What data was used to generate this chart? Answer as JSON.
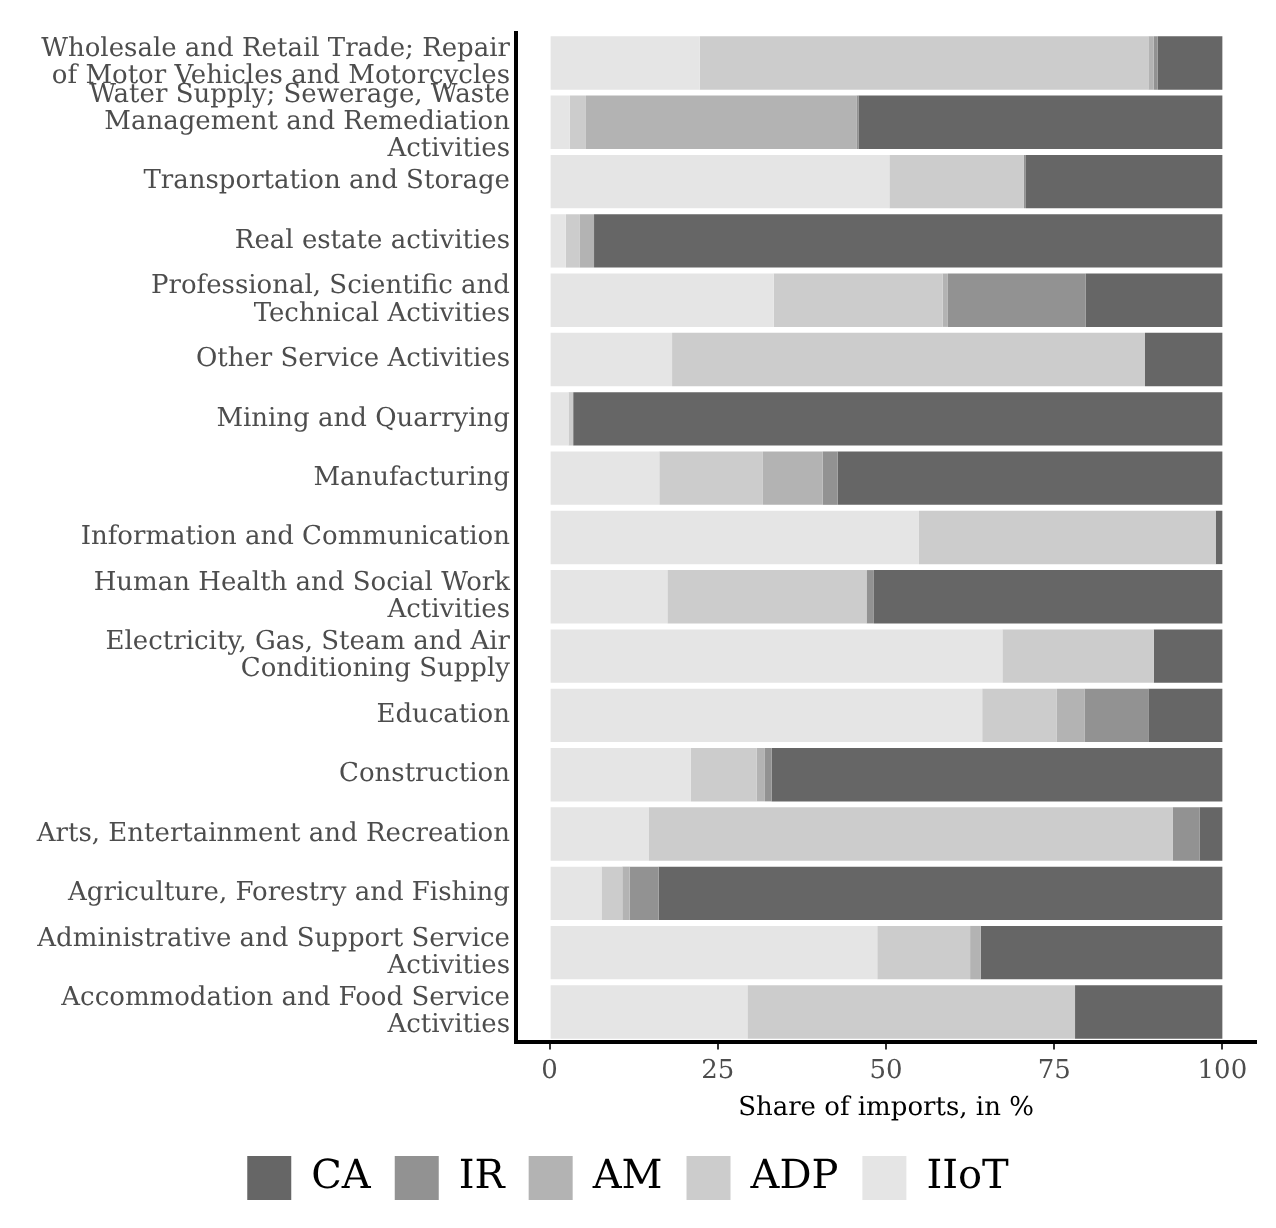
{
  "chart_data": {
    "type": "bar",
    "orientation": "horizontal",
    "stacked": true,
    "xlabel": "Share of imports, in %",
    "legend": "bottom",
    "categories": [
      "Wholesale and Retail Trade; Repair of Motor Vehicles and Motorcycles",
      "Water Supply; Sewerage, Waste Management and Remediation Activities",
      "Transportation and Storage",
      "Real estate activities",
      "Professional, Scientific and Technical Activities",
      "Other Service Activities",
      "Mining and Quarrying",
      "Manufacturing",
      "Information and Communication",
      "Human Health and Social Work Activities",
      "Electricity, Gas, Steam and Air Conditioning Supply",
      "Education",
      "Construction",
      "Arts, Entertainment and Recreation",
      "Agriculture, Forestry and Fishing",
      "Administrative and Support Service Activities",
      "Accommodation and Food Service Activities"
    ],
    "series": [
      {
        "name": "IIoT",
        "color": "#e5e5e5",
        "values": [
          22.3,
          3.0,
          50.5,
          2.4,
          33.3,
          18.2,
          2.8,
          16.3,
          54.9,
          17.5,
          67.3,
          64.3,
          21.0,
          14.7,
          7.7,
          48.7,
          29.4
        ]
      },
      {
        "name": "ADP",
        "color": "#cccccc",
        "values": [
          66.7,
          2.4,
          20.0,
          2.1,
          25.1,
          70.3,
          0.7,
          15.4,
          44.1,
          29.6,
          22.5,
          11.1,
          9.8,
          77.9,
          3.1,
          13.8,
          48.7
        ]
      },
      {
        "name": "AM",
        "color": "#b3b3b3",
        "values": [
          0.8,
          40.2,
          0,
          2.1,
          0.8,
          0,
          0,
          8.9,
          0,
          null,
          0,
          4.1,
          1.2,
          0,
          1.1,
          1.6,
          0
        ]
      },
      {
        "name": "IR",
        "color": "#929292",
        "values": [
          0.6,
          0.3,
          0.3,
          0,
          20.5,
          0,
          0,
          2.2,
          0,
          1.1,
          0,
          9.5,
          1.0,
          4.0,
          4.3,
          0,
          0
        ]
      },
      {
        "name": "CA",
        "color": "#666666",
        "values": [
          9.6,
          54.1,
          29.2,
          93.4,
          20.3,
          11.5,
          96.5,
          57.2,
          1.0,
          51.8,
          10.2,
          11.0,
          67.0,
          3.4,
          83.8,
          35.9,
          21.9
        ]
      }
    ],
    "xlim": [
      -5,
      105
    ],
    "xticks": [
      0,
      25,
      50,
      75,
      100
    ]
  }
}
